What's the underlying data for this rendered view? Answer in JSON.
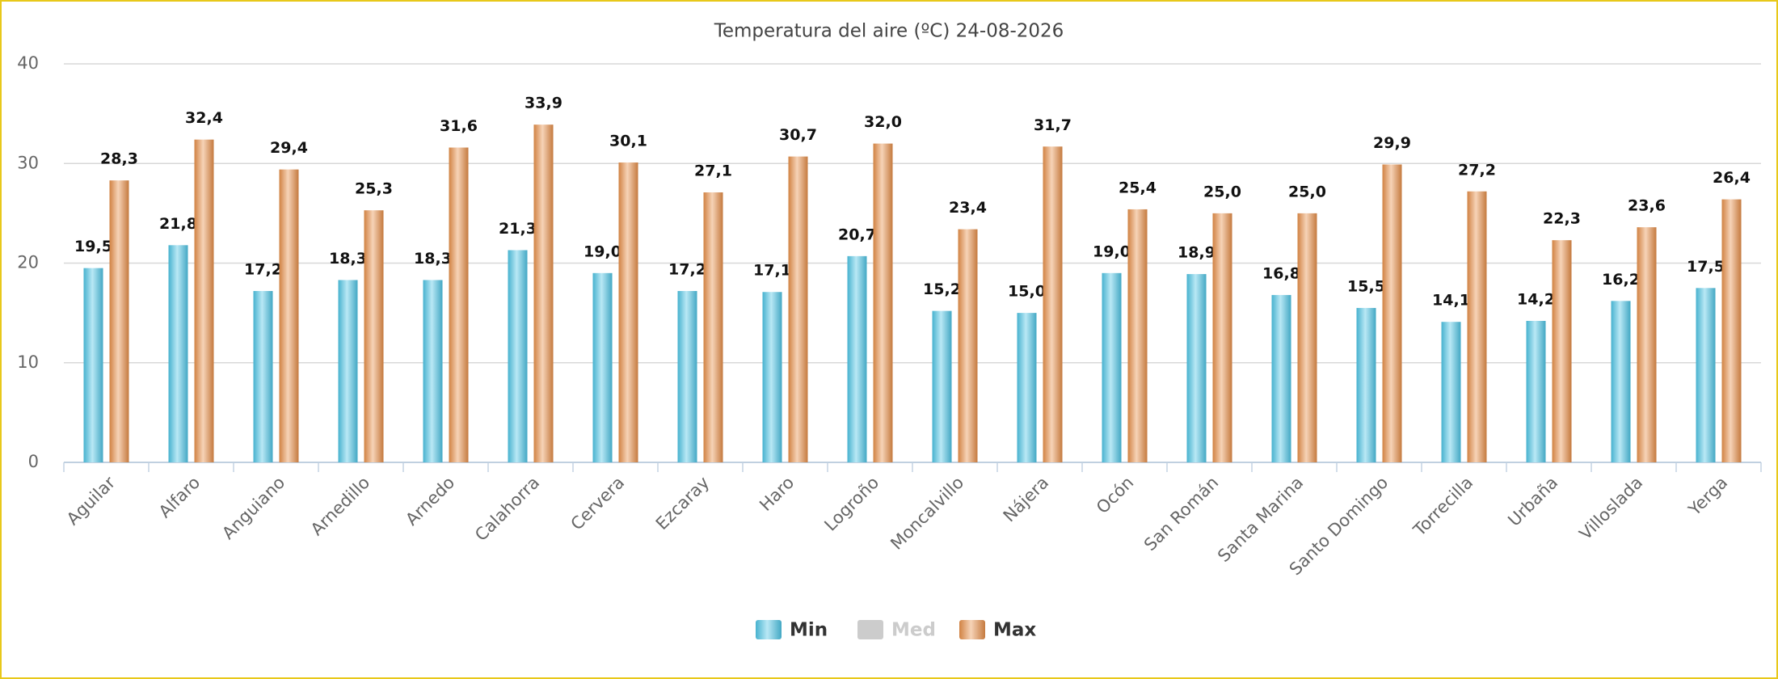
{
  "chart_data": {
    "type": "bar",
    "title": "Temperatura del aire (ºC) 24-08-2026",
    "categories": [
      "Aguilar",
      "Alfaro",
      "Anguiano",
      "Arnedillo",
      "Arnedo",
      "Calahorra",
      "Cervera",
      "Ezcaray",
      "Haro",
      "Logroño",
      "Moncalvillo",
      "Nájera",
      "Ocón",
      "San Román",
      "Santa Marina",
      "Santo Domingo",
      "Torrecilla",
      "Urbaña",
      "Villoslada",
      "Yerga"
    ],
    "series": [
      {
        "name": "Min",
        "color": "#4fc6e6",
        "values": [
          19.5,
          21.8,
          17.2,
          18.3,
          18.3,
          21.3,
          19.0,
          17.2,
          17.1,
          20.7,
          15.2,
          15.0,
          19.0,
          18.9,
          16.8,
          15.5,
          14.1,
          14.2,
          16.2,
          17.5
        ],
        "value_labels": [
          "19,5",
          "21,8",
          "17,2",
          "18,3",
          "18,3",
          "21,3",
          "19,0",
          "17,2",
          "17,1",
          "20,7",
          "15,2",
          "15,0",
          "19,0",
          "18,9",
          "16,8",
          "15,5",
          "14,1",
          "14,2",
          "16,2",
          "17,5"
        ]
      },
      {
        "name": "Med",
        "color": "#cccccc",
        "hidden": true,
        "values": [
          null,
          null,
          null,
          null,
          null,
          null,
          null,
          null,
          null,
          null,
          null,
          null,
          null,
          null,
          null,
          null,
          null,
          null,
          null,
          null
        ]
      },
      {
        "name": "Max",
        "color": "#e8904a",
        "values": [
          28.3,
          32.4,
          29.4,
          25.3,
          31.6,
          33.9,
          30.1,
          27.1,
          30.7,
          32.0,
          23.4,
          31.7,
          25.4,
          25.0,
          25.0,
          29.9,
          27.2,
          22.3,
          23.6,
          26.4
        ],
        "value_labels": [
          "28,3",
          "32,4",
          "29,4",
          "25,3",
          "31,6",
          "33,9",
          "30,1",
          "27,1",
          "30,7",
          "32,0",
          "23,4",
          "31,7",
          "25,4",
          "25,0",
          "25,0",
          "29,9",
          "27,2",
          "22,3",
          "23,6",
          "26,4"
        ]
      }
    ],
    "ylim": [
      0,
      40
    ],
    "yticks": [
      0,
      10,
      20,
      30,
      40
    ],
    "grid": true,
    "legend": "bottom"
  }
}
